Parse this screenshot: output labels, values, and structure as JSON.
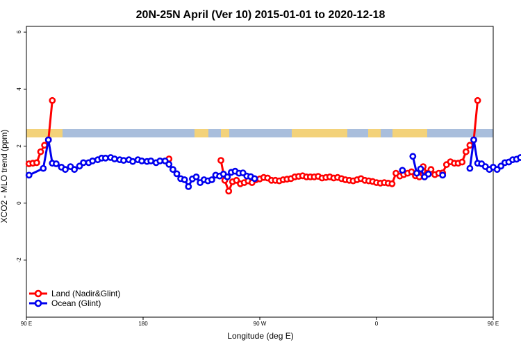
{
  "chart_data": {
    "type": "line",
    "title": "20N-25N April (Ver 10)   2015-01-01 to 2020-12-18",
    "xlabel": "Longitude (deg E)",
    "ylabel": "XCO2 - MLO trend (ppm)",
    "xlim": [
      90,
      450
    ],
    "ylim": [
      -4,
      6.2
    ],
    "x_ticks": [
      {
        "value": 90,
        "label": "90 E"
      },
      {
        "value": 180,
        "label": "180"
      },
      {
        "value": 270,
        "label": "90 W"
      },
      {
        "value": 360,
        "label": "0"
      },
      {
        "value": 450,
        "label": "90 E"
      },
      {
        "value": 540,
        "label": "180"
      }
    ],
    "y_ticks": [
      {
        "value": -2,
        "label": "-2"
      },
      {
        "value": 0,
        "label": "0"
      },
      {
        "value": 2,
        "label": "2"
      },
      {
        "value": 4,
        "label": "4"
      },
      {
        "value": 6,
        "label": "6"
      }
    ],
    "legend_position": "bottom-left",
    "series": [
      {
        "name": "Land (Nadir&Glint)",
        "color": "#ff0000",
        "segments": [
          [
            [
              92,
              1.38
            ],
            [
              95,
              1.4
            ],
            [
              98,
              1.42
            ],
            [
              101,
              1.8
            ],
            [
              104,
              2.03
            ],
            [
              107,
              2.22
            ],
            [
              110,
              3.6
            ]
          ],
          [
            [
              200,
              1.55
            ]
          ],
          [
            [
              240,
              1.5
            ],
            [
              243,
              0.8
            ],
            [
              246,
              0.42
            ],
            [
              249,
              0.75
            ],
            [
              252,
              0.8
            ],
            [
              255,
              0.68
            ],
            [
              258,
              0.72
            ],
            [
              261,
              0.78
            ],
            [
              264,
              0.72
            ],
            [
              267,
              0.82
            ],
            [
              270,
              0.85
            ],
            [
              273,
              0.9
            ],
            [
              276,
              0.88
            ],
            [
              279,
              0.8
            ],
            [
              282,
              0.8
            ],
            [
              285,
              0.78
            ],
            [
              288,
              0.82
            ],
            [
              291,
              0.84
            ],
            [
              294,
              0.86
            ],
            [
              297,
              0.92
            ],
            [
              300,
              0.94
            ],
            [
              303,
              0.96
            ],
            [
              306,
              0.92
            ],
            [
              309,
              0.92
            ],
            [
              312,
              0.92
            ],
            [
              315,
              0.94
            ],
            [
              318,
              0.88
            ],
            [
              321,
              0.9
            ],
            [
              324,
              0.92
            ],
            [
              327,
              0.88
            ],
            [
              330,
              0.9
            ],
            [
              333,
              0.86
            ],
            [
              336,
              0.82
            ],
            [
              339,
              0.8
            ],
            [
              342,
              0.78
            ],
            [
              345,
              0.82
            ],
            [
              348,
              0.86
            ],
            [
              351,
              0.8
            ],
            [
              354,
              0.78
            ],
            [
              357,
              0.76
            ],
            [
              360,
              0.72
            ],
            [
              363,
              0.7
            ],
            [
              366,
              0.72
            ],
            [
              369,
              0.7
            ],
            [
              372,
              0.68
            ],
            [
              375,
              1.05
            ],
            [
              378,
              0.95
            ],
            [
              381,
              1.0
            ],
            [
              384,
              1.05
            ],
            [
              387,
              1.1
            ],
            [
              390,
              0.96
            ],
            [
              393,
              0.92
            ],
            [
              396,
              1.28
            ],
            [
              399,
              1.05
            ],
            [
              402,
              1.18
            ],
            [
              405,
              1.0
            ],
            [
              408,
              1.05
            ],
            [
              411,
              1.06
            ],
            [
              414,
              1.35
            ],
            [
              417,
              1.45
            ],
            [
              420,
              1.4
            ],
            [
              423,
              1.4
            ],
            [
              426,
              1.44
            ],
            [
              429,
              1.8
            ],
            [
              432,
              2.03
            ],
            [
              435,
              2.22
            ],
            [
              438,
              3.6
            ]
          ]
        ]
      },
      {
        "name": "Ocean (Glint)",
        "color": "#0000ee",
        "segments": [
          [
            [
              92,
              0.98
            ],
            [
              103,
              1.22
            ],
            [
              107,
              2.22
            ],
            [
              110,
              1.4
            ],
            [
              113,
              1.38
            ],
            [
              117,
              1.26
            ],
            [
              120,
              1.18
            ],
            [
              124,
              1.28
            ],
            [
              127,
              1.18
            ],
            [
              131,
              1.3
            ],
            [
              134,
              1.42
            ],
            [
              138,
              1.42
            ],
            [
              141,
              1.48
            ],
            [
              145,
              1.52
            ],
            [
              148,
              1.58
            ],
            [
              151,
              1.58
            ],
            [
              155,
              1.6
            ],
            [
              158,
              1.55
            ],
            [
              162,
              1.52
            ],
            [
              165,
              1.5
            ],
            [
              169,
              1.52
            ],
            [
              172,
              1.46
            ],
            [
              176,
              1.52
            ],
            [
              179,
              1.48
            ],
            [
              183,
              1.46
            ],
            [
              186,
              1.48
            ],
            [
              190,
              1.42
            ],
            [
              193,
              1.48
            ],
            [
              197,
              1.48
            ],
            [
              200,
              1.36
            ],
            [
              203,
              1.18
            ],
            [
              206,
              1.03
            ],
            [
              209,
              0.86
            ],
            [
              212,
              0.82
            ],
            [
              215,
              0.58
            ],
            [
              218,
              0.85
            ],
            [
              221,
              0.92
            ],
            [
              224,
              0.72
            ],
            [
              227,
              0.82
            ],
            [
              230,
              0.78
            ],
            [
              233,
              0.82
            ],
            [
              236,
              0.98
            ],
            [
              239,
              0.95
            ],
            [
              242,
              1.02
            ],
            [
              245,
              0.92
            ],
            [
              248,
              1.08
            ],
            [
              251,
              1.12
            ],
            [
              254,
              1.05
            ],
            [
              257,
              1.06
            ],
            [
              260,
              0.95
            ],
            [
              263,
              0.93
            ],
            [
              266,
              0.86
            ]
          ],
          [
            [
              380,
              1.15
            ]
          ],
          [
            [
              388,
              1.64
            ],
            [
              391,
              1.05
            ],
            [
              394,
              1.2
            ],
            [
              397,
              0.92
            ],
            [
              400,
              1.02
            ]
          ],
          [
            [
              411,
              0.98
            ]
          ],
          [
            [
              432,
              1.22
            ],
            [
              435,
              2.22
            ],
            [
              438,
              1.4
            ],
            [
              441,
              1.38
            ],
            [
              444,
              1.28
            ],
            [
              447,
              1.18
            ],
            [
              450,
              1.26
            ],
            [
              453,
              1.18
            ],
            [
              456,
              1.3
            ],
            [
              459,
              1.42
            ],
            [
              462,
              1.44
            ],
            [
              465,
              1.52
            ],
            [
              468,
              1.54
            ],
            [
              471,
              1.6
            ]
          ]
        ]
      }
    ]
  }
}
